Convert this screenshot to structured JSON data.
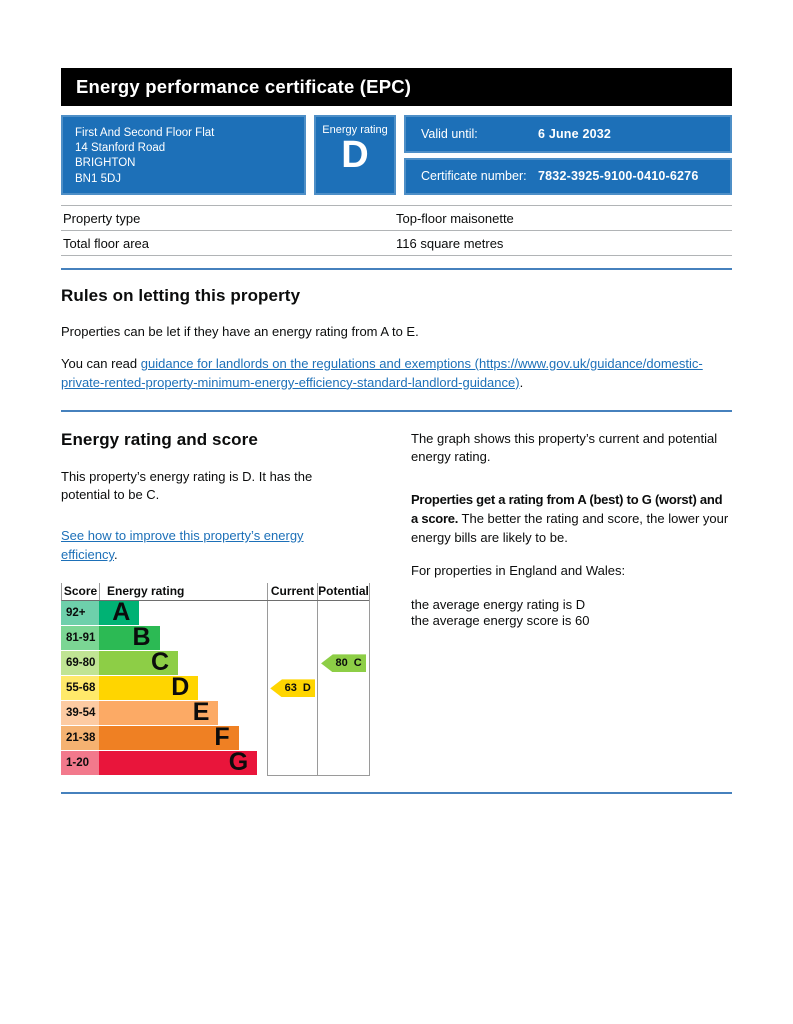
{
  "colors": {
    "accent_blue": "#1d70b8",
    "header_bar": "#000000",
    "link": "#1d70b8"
  },
  "header": {
    "title": "Energy performance certificate (EPC)"
  },
  "summary": {
    "address_lines": [
      "First And Second Floor Flat",
      "14 Stanford Road",
      "BRIGHTON",
      "BN1 5DJ"
    ],
    "energy_rating_label": "Energy rating",
    "energy_rating_value": "D",
    "valid_until_label": "Valid until:",
    "valid_until_value": "6 June 2032",
    "certificate_number_label": "Certificate number:",
    "certificate_number_value": "7832-3925-9100-0410-6276"
  },
  "property_details": {
    "rows": [
      {
        "label": "Property type",
        "value": "Top-floor maisonette"
      },
      {
        "label": "Total floor area",
        "value": "116 square metres"
      }
    ]
  },
  "rules_section": {
    "heading": "Rules on letting this property",
    "paragraph1": "Properties can be let if they have an energy rating from A to E.",
    "paragraph2_prefix": "You can read ",
    "paragraph2_link": "guidance for landlords on the regulations and exemptions (https://www.gov.uk/guidance/domestic-private-rented-property-minimum-energy-efficiency-standard-landlord-guidance)",
    "paragraph2_suffix": "."
  },
  "rating_section": {
    "heading": "Energy rating and score",
    "intro": "This property’s energy rating is D. It has the potential to be C.",
    "improve_link": "See how to improve this property’s energy efficiency",
    "improve_suffix": ".",
    "right": {
      "p1": "The graph shows this property’s current and potential energy rating.",
      "p2_bold": "Properties get a rating from A (best) to G (worst) and a score.",
      "p2_rest": " The better the rating and score, the lower your energy bills are likely to be.",
      "p3": "For properties in England and Wales:",
      "p4_line1": "the average energy rating is D",
      "p4_line2": "the average energy score is 60"
    }
  },
  "chart_data": {
    "type": "bar",
    "title": "Energy rating and score chart",
    "columns": [
      "Score",
      "Energy rating",
      "Current",
      "Potential"
    ],
    "bands": [
      {
        "score_range": "92+",
        "letter": "A",
        "color": "#00b274",
        "score_bg": "#6ed0ab",
        "width_pct": 24
      },
      {
        "score_range": "81-91",
        "letter": "B",
        "color": "#2cba54",
        "score_bg": "#7bd694",
        "width_pct": 36
      },
      {
        "score_range": "69-80",
        "letter": "C",
        "color": "#8dce46",
        "score_bg": "#c0e494",
        "width_pct": 47
      },
      {
        "score_range": "55-68",
        "letter": "D",
        "color": "#ffd500",
        "score_bg": "#ffe96a",
        "width_pct": 59
      },
      {
        "score_range": "39-54",
        "letter": "E",
        "color": "#fcaa65",
        "score_bg": "#fdcba2",
        "width_pct": 71
      },
      {
        "score_range": "21-38",
        "letter": "F",
        "color": "#ef8023",
        "score_bg": "#f5b271",
        "width_pct": 83
      },
      {
        "score_range": "1-20",
        "letter": "G",
        "color": "#e9153b",
        "score_bg": "#f2798c",
        "width_pct": 94
      }
    ],
    "current": {
      "label": "63 D",
      "score": 63,
      "band": "D",
      "color": "#ffd500"
    },
    "potential": {
      "label": "80 C",
      "score": 80,
      "band": "C",
      "color": "#8dce46"
    },
    "legend": "none",
    "grid": "off"
  }
}
